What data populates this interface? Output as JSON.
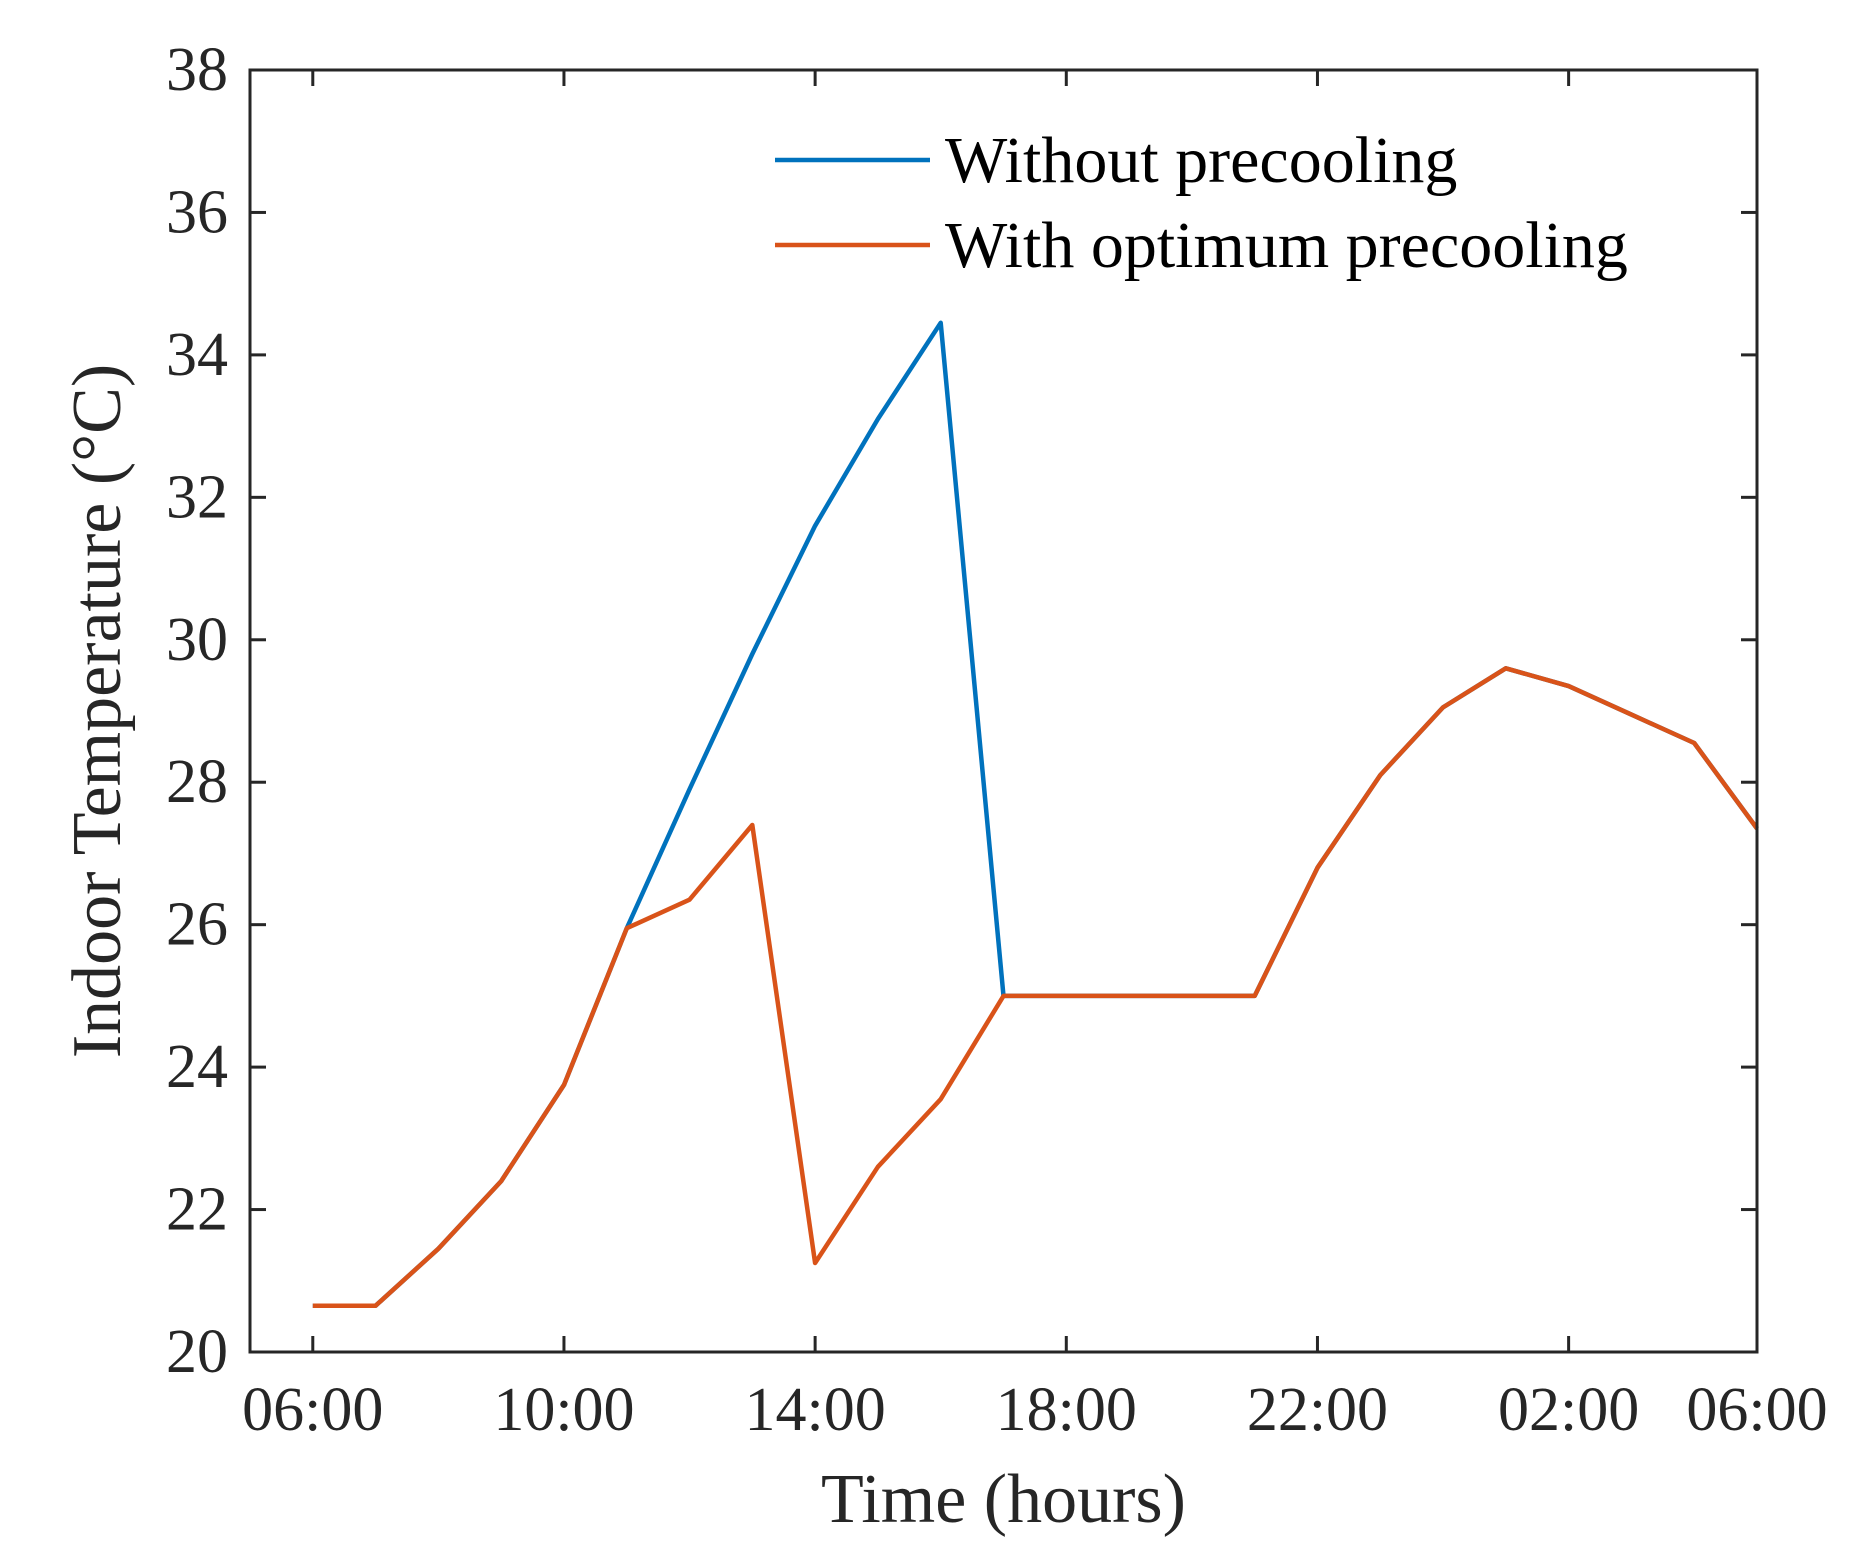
{
  "chart_data": {
    "type": "line",
    "title": "",
    "xlabel": "Time (hours)",
    "ylabel": "Indoor Temperature (°C)",
    "xlim": [
      5,
      29
    ],
    "ylim": [
      20,
      38
    ],
    "x_ticks": [
      {
        "value": 6,
        "label": "06:00"
      },
      {
        "value": 10,
        "label": "10:00"
      },
      {
        "value": 14,
        "label": "14:00"
      },
      {
        "value": 18,
        "label": "18:00"
      },
      {
        "value": 22,
        "label": "22:00"
      },
      {
        "value": 26,
        "label": "02:00"
      },
      {
        "value": 30,
        "label": "06:00"
      }
    ],
    "y_ticks": [
      20,
      22,
      24,
      26,
      28,
      30,
      32,
      34,
      36,
      38
    ],
    "grid": false,
    "legend_position": "top-right",
    "series": [
      {
        "name": "Without precooling",
        "color": "#0072BD",
        "x": [
          6,
          7,
          8,
          9,
          10,
          11,
          12,
          13,
          14,
          15,
          16,
          17,
          18,
          19,
          20,
          21,
          22,
          23,
          24,
          25,
          26,
          27,
          28,
          29
        ],
        "values": [
          20.65,
          20.65,
          21.45,
          22.4,
          23.75,
          25.95,
          27.9,
          29.8,
          31.6,
          33.1,
          34.45,
          25.0,
          25.0,
          25.0,
          25.0,
          25.0,
          26.8,
          28.1,
          29.05,
          29.6,
          29.35,
          28.95,
          28.55,
          27.35
        ]
      },
      {
        "name": "With optimum precooling",
        "color": "#D95319",
        "x": [
          6,
          7,
          8,
          9,
          10,
          11,
          12,
          13,
          14,
          15,
          16,
          17,
          18,
          19,
          20,
          21,
          22,
          23,
          24,
          25,
          26,
          27,
          28,
          29
        ],
        "values": [
          20.65,
          20.65,
          21.45,
          22.4,
          23.75,
          25.95,
          26.35,
          27.4,
          21.25,
          22.6,
          23.55,
          25.0,
          25.0,
          25.0,
          25.0,
          25.0,
          26.8,
          28.1,
          29.05,
          29.6,
          29.35,
          28.95,
          28.55,
          27.35
        ]
      }
    ]
  }
}
